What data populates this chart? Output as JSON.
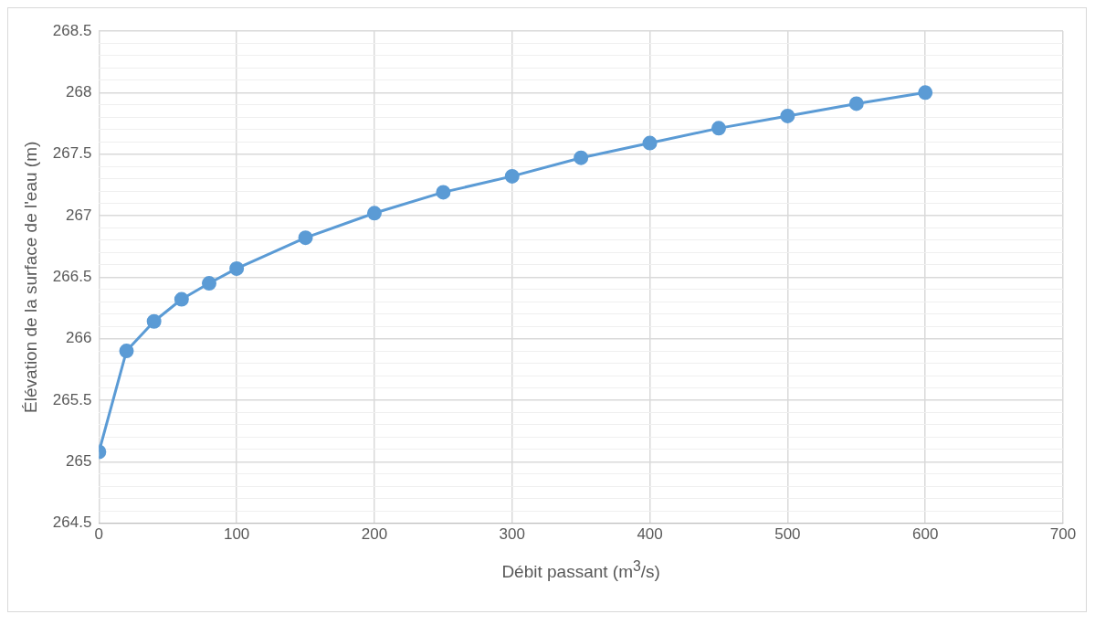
{
  "chart_data": {
    "type": "line",
    "xlabel": "Débit passant (m$^{3}$/s)",
    "ylabel": "Élévation de la surface de l'eau (m)",
    "x": [
      0,
      20,
      40,
      60,
      80,
      100,
      150,
      200,
      250,
      300,
      350,
      400,
      450,
      500,
      550,
      600
    ],
    "series": [
      {
        "color": "#5b9bd5",
        "values": [
          265.08,
          265.9,
          266.14,
          266.32,
          266.45,
          266.57,
          266.82,
          267.02,
          267.19,
          267.32,
          267.47,
          267.59,
          267.71,
          267.81,
          267.91,
          268.0
        ]
      }
    ],
    "xlim": [
      0,
      700
    ],
    "xticks": [
      0,
      100,
      200,
      300,
      400,
      500,
      600,
      700
    ],
    "ylim": [
      264.5,
      268.5
    ],
    "yticks": [
      264.5,
      {
        "value": 264.6,
        "label": null
      },
      {
        "value": 264.7,
        "label": null
      },
      {
        "value": 264.8,
        "label": null
      },
      {
        "value": 264.9,
        "label": null
      },
      265,
      {
        "value": 265.1,
        "label": null
      },
      {
        "value": 265.2,
        "label": null
      },
      {
        "value": 265.3,
        "label": null
      },
      {
        "value": 265.4,
        "label": null
      },
      265.5,
      {
        "value": 265.6,
        "label": null
      },
      {
        "value": 265.7,
        "label": null
      },
      {
        "value": 265.8,
        "label": null
      },
      {
        "value": 265.9,
        "label": null
      },
      266,
      {
        "value": 266.1,
        "label": null
      },
      {
        "value": 266.2,
        "label": null
      },
      {
        "value": 266.3,
        "label": null
      },
      {
        "value": 266.4,
        "label": null
      },
      266.5,
      {
        "value": 266.6,
        "label": null
      },
      {
        "value": 266.7,
        "label": null
      },
      {
        "value": 266.8,
        "label": null
      },
      {
        "value": 266.9,
        "label": null
      },
      267,
      {
        "value": 267.1,
        "label": null
      },
      {
        "value": 267.2,
        "label": null
      },
      {
        "value": 267.3,
        "label": null
      },
      {
        "value": 267.4,
        "label": null
      },
      267.5,
      {
        "value": 267.6,
        "label": null
      },
      {
        "value": 267.7,
        "label": null
      },
      {
        "value": 267.8,
        "label": null
      },
      {
        "value": 267.9,
        "label": null
      },
      268,
      {
        "value": 268.1,
        "label": null
      },
      {
        "value": 268.2,
        "label": null
      },
      {
        "value": 268.3,
        "label": null
      },
      {
        "value": 268.4,
        "label": null
      },
      268.5
    ],
    "grid": true,
    "marker": "circle",
    "line_style": "solid",
    "legend": false
  }
}
